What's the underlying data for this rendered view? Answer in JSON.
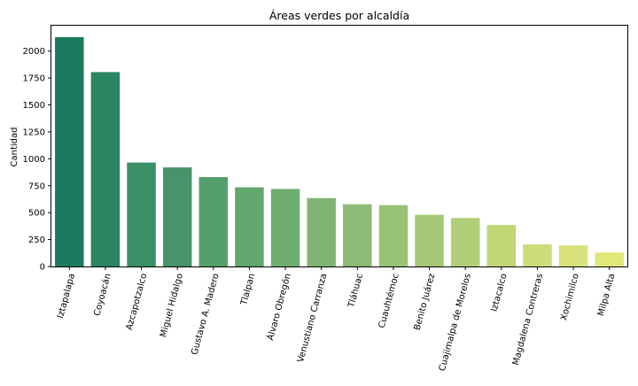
{
  "chart_data": {
    "type": "bar",
    "title": "Áreas verdes por alcaldía",
    "xlabel": "",
    "ylabel": "Cantidad",
    "categories": [
      "Iztapalapa",
      "Coyoacán",
      "Azcapotzalco",
      "Miguel Hidalgo",
      "Gustavo A. Madero",
      "Tlalpan",
      "Álvaro Obregón",
      "Venustiano Carranza",
      "Tláhuac",
      "Cuauhtémoc",
      "Benito Juárez",
      "Cuajimalpa de Morelos",
      "Iztacalco",
      "Magdalena Contreras",
      "Xochimilco",
      "Milpa Alta"
    ],
    "values": [
      2130,
      1805,
      965,
      920,
      830,
      735,
      720,
      635,
      578,
      570,
      480,
      450,
      385,
      205,
      195,
      130
    ],
    "ylim": [
      0,
      2236
    ],
    "yticks": [
      0,
      250,
      500,
      750,
      1000,
      1250,
      1500,
      1750,
      2000
    ],
    "grid": false,
    "colors": [
      "#1d7a60",
      "#2c8563",
      "#398f66",
      "#47936a",
      "#549f6c",
      "#62a76e",
      "#6fae70",
      "#7eb573",
      "#8bbb74",
      "#98c375",
      "#a5c876",
      "#b3ce78",
      "#c0d576",
      "#cddc78",
      "#d7e07a",
      "#e0e87a"
    ]
  }
}
